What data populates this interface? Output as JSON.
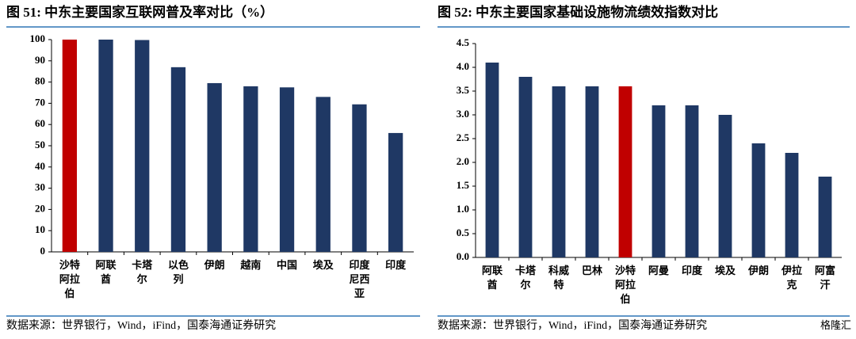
{
  "chart_data": [
    {
      "type": "bar",
      "title": "图 51:  中东主要国家互联网普及率对比（%）",
      "categories": [
        "沙特阿拉伯",
        "阿联酋",
        "卡塔尔",
        "以色列",
        "伊朗",
        "越南",
        "中国",
        "埃及",
        "印度尼西亚",
        "印度"
      ],
      "values": [
        100,
        100,
        99.8,
        87,
        79.5,
        78,
        77.5,
        73,
        69.5,
        56
      ],
      "colors": [
        "#c00000",
        "#1f3864",
        "#1f3864",
        "#1f3864",
        "#1f3864",
        "#1f3864",
        "#1f3864",
        "#1f3864",
        "#1f3864",
        "#1f3864"
      ],
      "ylim": [
        0,
        100
      ],
      "yticks": [
        0,
        10,
        20,
        30,
        40,
        50,
        60,
        70,
        80,
        90,
        100
      ],
      "grid": false,
      "source": "数据来源：世界银行，Wind，iFind，国泰海通证券研究"
    },
    {
      "type": "bar",
      "title": "图 52:  中东主要国家基础设施物流绩效指数对比",
      "categories": [
        "阿联酋",
        "卡塔尔",
        "科威特",
        "巴林",
        "沙特阿拉伯",
        "阿曼",
        "印度",
        "埃及",
        "伊朗",
        "伊拉克",
        "阿富汗"
      ],
      "values": [
        4.1,
        3.8,
        3.6,
        3.6,
        3.6,
        3.2,
        3.2,
        3.0,
        2.4,
        2.2,
        1.7
      ],
      "colors": [
        "#1f3864",
        "#1f3864",
        "#1f3864",
        "#1f3864",
        "#c00000",
        "#1f3864",
        "#1f3864",
        "#1f3864",
        "#1f3864",
        "#1f3864",
        "#1f3864"
      ],
      "ylim": [
        0,
        4.5
      ],
      "yticks": [
        {
          "value": 0,
          "label": "0.0"
        },
        0.5,
        {
          "value": 1,
          "label": "1.0"
        },
        1.5,
        {
          "value": 2,
          "label": "2.0"
        },
        2.5,
        {
          "value": 3,
          "label": "3.0"
        },
        3.5,
        {
          "value": 4,
          "label": "4.0"
        },
        4.5
      ],
      "grid": false,
      "source": "数据来源：世界银行，Wind，iFind，国泰海通证券研究"
    }
  ],
  "watermark": "格隆汇"
}
